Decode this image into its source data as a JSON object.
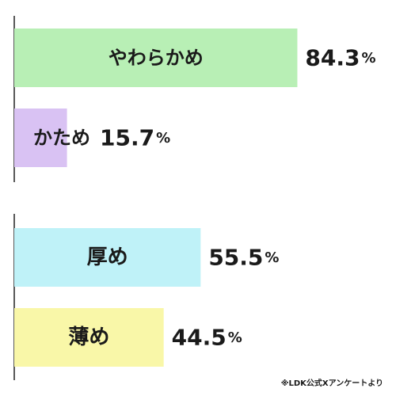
{
  "chart_data": [
    {
      "type": "bar",
      "orientation": "horizontal",
      "categories": [
        "やわらかめ",
        "かため"
      ],
      "values": [
        84.3,
        15.7
      ],
      "value_labels": [
        "84.3",
        "15.7"
      ],
      "unit": "%",
      "colors": [
        "#b8efb5",
        "#d9c2f3"
      ],
      "xlim": [
        0,
        100
      ]
    },
    {
      "type": "bar",
      "orientation": "horizontal",
      "categories": [
        "厚め",
        "薄め"
      ],
      "values": [
        55.5,
        44.5
      ],
      "value_labels": [
        "55.5",
        "44.5"
      ],
      "unit": "%",
      "colors": [
        "#bff2f8",
        "#f9f7a8"
      ],
      "xlim": [
        0,
        100
      ]
    }
  ],
  "source_note": "※LDK公式Xアンケートより"
}
